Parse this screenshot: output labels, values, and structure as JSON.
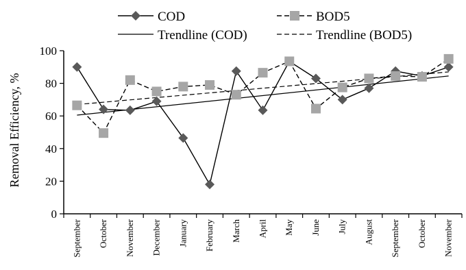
{
  "chart_data": {
    "type": "line",
    "ylabel": "Removal Efficiency, %",
    "xlabel": "",
    "ylim": [
      0,
      100
    ],
    "yticks": [
      0,
      20,
      40,
      60,
      80,
      100
    ],
    "categories": [
      "September",
      "October",
      "November",
      "December",
      "January",
      "February",
      "March",
      "April",
      "May",
      "June",
      "July",
      "August",
      "September",
      "October",
      "November"
    ],
    "series": [
      {
        "name": "COD",
        "color": "#595959",
        "marker": "diamond",
        "values": [
          90,
          64,
          63.5,
          69,
          46.5,
          18,
          87.5,
          63.5,
          93.5,
          83,
          70,
          77,
          87.5,
          84.5,
          90
        ]
      },
      {
        "name": "BOD5",
        "color": "#a6a6a6",
        "marker": "square",
        "values": [
          66.5,
          49.5,
          82,
          75,
          78,
          79,
          73,
          86.5,
          93.5,
          64.5,
          77.5,
          83,
          84.5,
          84,
          95
        ]
      }
    ],
    "trendlines": [
      {
        "name": "Trendline (COD)",
        "style": "solid",
        "start": 60.5,
        "end": 84.5
      },
      {
        "name": "Trendline (BOD5)",
        "style": "dashed",
        "start": 67,
        "end": 87
      }
    ],
    "legend": {
      "position": "top",
      "entries": [
        "COD",
        "BOD5",
        "Trendline (COD)",
        "Trendline (BOD5)"
      ]
    },
    "grid": false
  }
}
